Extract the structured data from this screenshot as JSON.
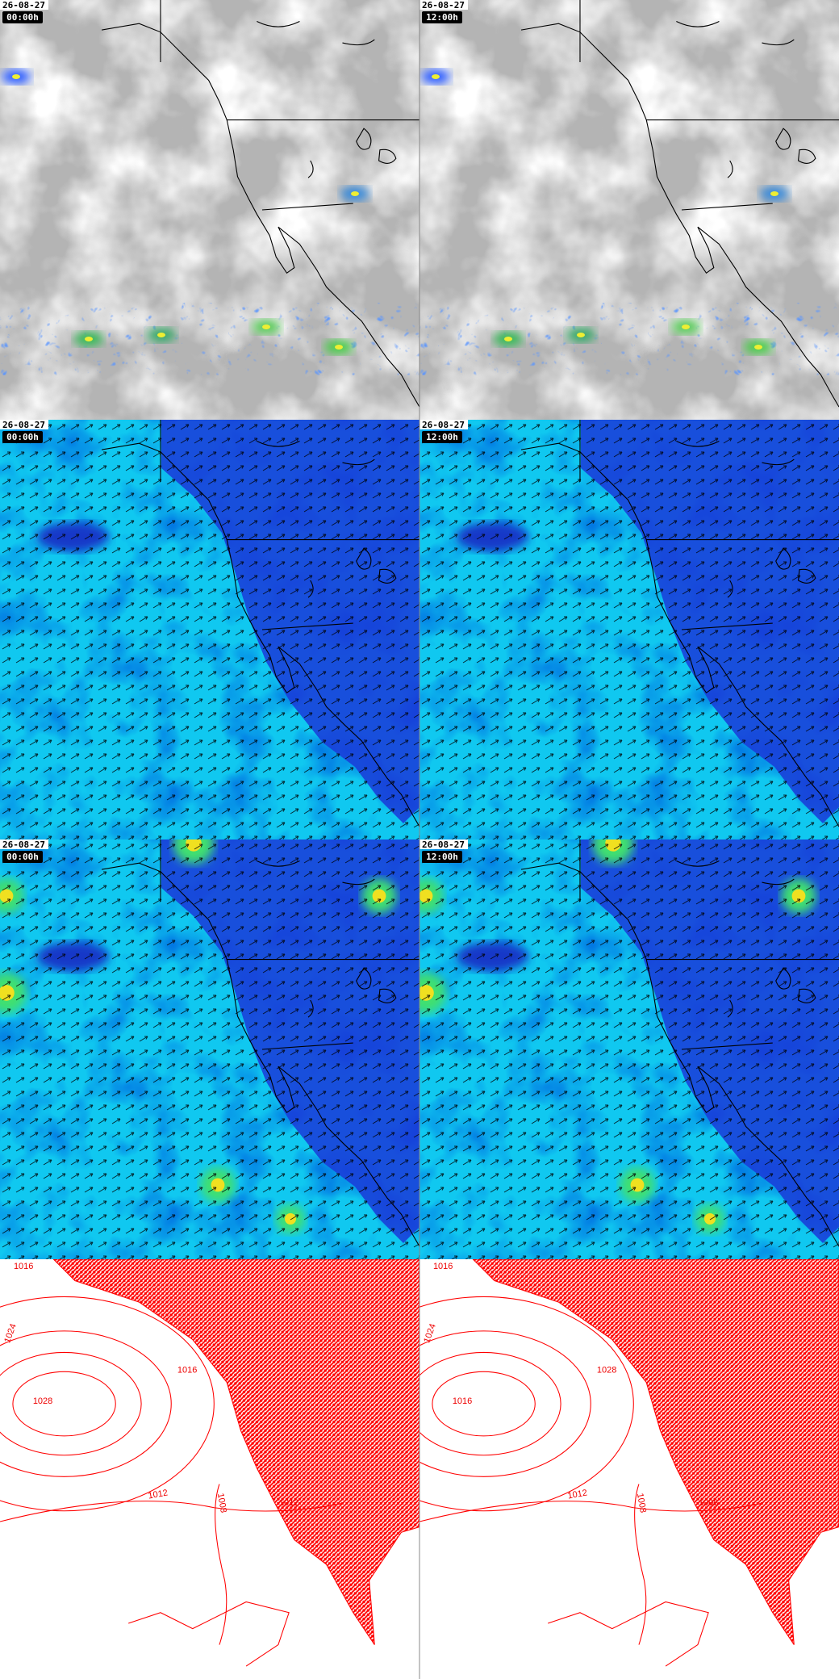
{
  "panels": [
    {
      "date": "26-08-27",
      "time": "00:00h"
    },
    {
      "date": "26-08-27",
      "time": "12:00h"
    },
    {
      "date": "26-08-27",
      "time": "00:00h"
    },
    {
      "date": "26-08-27",
      "time": "12:00h"
    },
    {
      "date": "26-08-27",
      "time": "00:00h"
    },
    {
      "date": "26-08-27",
      "time": "12:00h"
    }
  ],
  "pressure_panels": [
    {
      "isobars": [
        "1016",
        "1024",
        "1016",
        "1028",
        "1012",
        "1008",
        "1012"
      ]
    },
    {
      "isobars": [
        "1016",
        "1024",
        "1028",
        "1016",
        "1012",
        "1008",
        "1008"
      ]
    }
  ]
}
